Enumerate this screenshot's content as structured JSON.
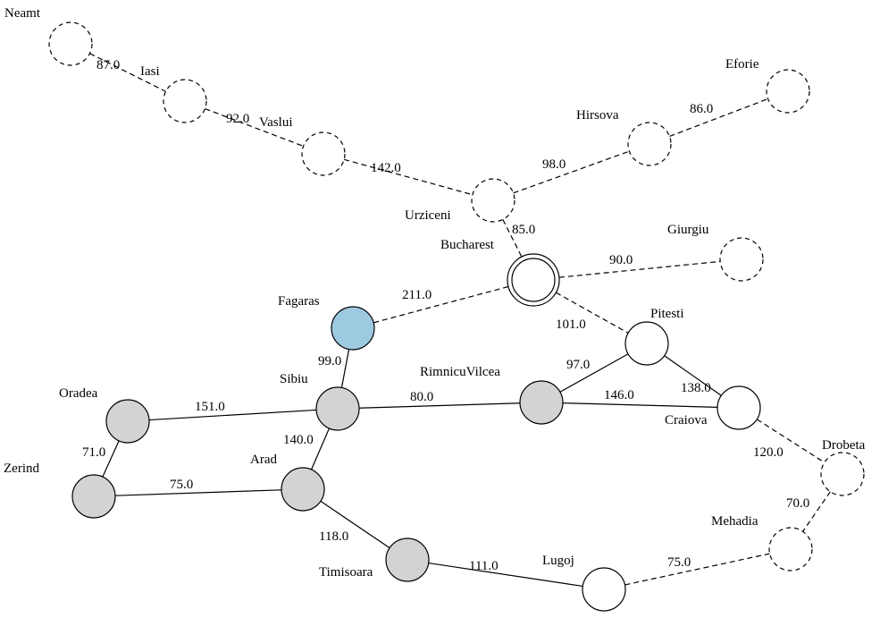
{
  "graph": {
    "colors": {
      "explored": "#d3d3d3",
      "current": "#9ecae1",
      "frontier": "#ffffff",
      "stroke": "#000000"
    },
    "nodes": [
      {
        "id": "Neamt",
        "label": "Neamt",
        "state": "unseen"
      },
      {
        "id": "Iasi",
        "label": "Iasi",
        "state": "unseen"
      },
      {
        "id": "Vaslui",
        "label": "Vaslui",
        "state": "unseen"
      },
      {
        "id": "Urziceni",
        "label": "Urziceni",
        "state": "unseen"
      },
      {
        "id": "Hirsova",
        "label": "Hirsova",
        "state": "unseen"
      },
      {
        "id": "Eforie",
        "label": "Eforie",
        "state": "unseen"
      },
      {
        "id": "Bucharest",
        "label": "Bucharest",
        "state": "goal"
      },
      {
        "id": "Giurgiu",
        "label": "Giurgiu",
        "state": "unseen"
      },
      {
        "id": "Fagaras",
        "label": "Fagaras",
        "state": "current"
      },
      {
        "id": "Pitesti",
        "label": "Pitesti",
        "state": "frontier"
      },
      {
        "id": "Oradea",
        "label": "Oradea",
        "state": "explored"
      },
      {
        "id": "Sibiu",
        "label": "Sibiu",
        "state": "explored"
      },
      {
        "id": "RimnicuVilcea",
        "label": "RimnicuVilcea",
        "state": "explored"
      },
      {
        "id": "Craiova",
        "label": "Craiova",
        "state": "frontier"
      },
      {
        "id": "Zerind",
        "label": "Zerind",
        "state": "explored"
      },
      {
        "id": "Arad",
        "label": "Arad",
        "state": "start"
      },
      {
        "id": "Drobeta",
        "label": "Drobeta",
        "state": "unseen"
      },
      {
        "id": "Mehadia",
        "label": "Mehadia",
        "state": "unseen"
      },
      {
        "id": "Timisoara",
        "label": "Timisoara",
        "state": "explored"
      },
      {
        "id": "Lugoj",
        "label": "Lugoj",
        "state": "frontier"
      }
    ],
    "edges": [
      {
        "from": "Neamt",
        "to": "Iasi",
        "cost": "87.0",
        "style": "dashed"
      },
      {
        "from": "Iasi",
        "to": "Vaslui",
        "cost": "92.0",
        "style": "dashed"
      },
      {
        "from": "Vaslui",
        "to": "Urziceni",
        "cost": "142.0",
        "style": "dashed"
      },
      {
        "from": "Urziceni",
        "to": "Hirsova",
        "cost": "98.0",
        "style": "dashed"
      },
      {
        "from": "Hirsova",
        "to": "Eforie",
        "cost": "86.0",
        "style": "dashed"
      },
      {
        "from": "Urziceni",
        "to": "Bucharest",
        "cost": "85.0",
        "style": "dashed"
      },
      {
        "from": "Bucharest",
        "to": "Giurgiu",
        "cost": "90.0",
        "style": "dashed"
      },
      {
        "from": "Fagaras",
        "to": "Bucharest",
        "cost": "211.0",
        "style": "dashed"
      },
      {
        "from": "Bucharest",
        "to": "Pitesti",
        "cost": "101.0",
        "style": "dashed"
      },
      {
        "from": "Sibiu",
        "to": "Fagaras",
        "cost": "99.0",
        "style": "solid"
      },
      {
        "from": "RimnicuVilcea",
        "to": "Pitesti",
        "cost": "97.0",
        "style": "solid"
      },
      {
        "from": "Pitesti",
        "to": "Craiova",
        "cost": "138.0",
        "style": "solid"
      },
      {
        "from": "Oradea",
        "to": "Sibiu",
        "cost": "151.0",
        "style": "solid"
      },
      {
        "from": "Sibiu",
        "to": "RimnicuVilcea",
        "cost": "80.0",
        "style": "solid"
      },
      {
        "from": "RimnicuVilcea",
        "to": "Craiova",
        "cost": "146.0",
        "style": "solid"
      },
      {
        "from": "Zerind",
        "to": "Oradea",
        "cost": "71.0",
        "style": "solid"
      },
      {
        "from": "Arad",
        "to": "Sibiu",
        "cost": "140.0",
        "style": "solid"
      },
      {
        "from": "Zerind",
        "to": "Arad",
        "cost": "75.0",
        "style": "solid"
      },
      {
        "from": "Craiova",
        "to": "Drobeta",
        "cost": "120.0",
        "style": "dashed"
      },
      {
        "from": "Drobeta",
        "to": "Mehadia",
        "cost": "70.0",
        "style": "dashed"
      },
      {
        "from": "Arad",
        "to": "Timisoara",
        "cost": "118.0",
        "style": "solid"
      },
      {
        "from": "Timisoara",
        "to": "Lugoj",
        "cost": "111.0",
        "style": "solid"
      },
      {
        "from": "Lugoj",
        "to": "Mehadia",
        "cost": "75.0",
        "style": "dashed"
      }
    ]
  }
}
